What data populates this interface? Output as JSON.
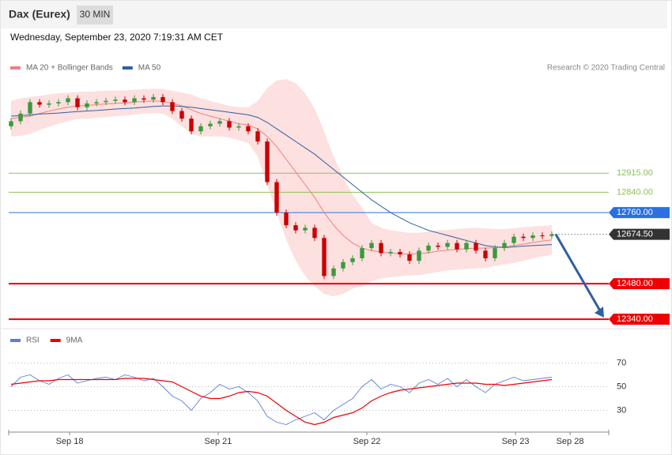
{
  "header": {
    "title": "Dax (Eurex)",
    "interval": "30 MIN",
    "timestamp": "Wednesday, September 23, 2020 7:19:31 AM CET",
    "credit": "Research © 2020 Trading Central"
  },
  "chart_data": [
    {
      "type": "candlestick",
      "up_color": "#3c9a3c",
      "down_color": "#cc0000",
      "candles": [
        [
          13100,
          13132,
          13088,
          13120
        ],
        [
          13120,
          13162,
          13108,
          13150
        ],
        [
          13150,
          13207,
          13138,
          13195
        ],
        [
          13195,
          13207,
          13173,
          13185
        ],
        [
          13185,
          13202,
          13173,
          13190
        ],
        [
          13190,
          13207,
          13178,
          13195
        ],
        [
          13195,
          13222,
          13183,
          13210
        ],
        [
          13210,
          13222,
          13163,
          13175
        ],
        [
          13175,
          13202,
          13163,
          13190
        ],
        [
          13190,
          13207,
          13178,
          13195
        ],
        [
          13195,
          13212,
          13183,
          13200
        ],
        [
          13200,
          13217,
          13188,
          13205
        ],
        [
          13205,
          13217,
          13183,
          13195
        ],
        [
          13195,
          13222,
          13183,
          13210
        ],
        [
          13210,
          13222,
          13193,
          13205
        ],
        [
          13205,
          13227,
          13193,
          13215
        ],
        [
          13215,
          13227,
          13183,
          13195
        ],
        [
          13195,
          13207,
          13148,
          13160
        ],
        [
          13160,
          13172,
          13118,
          13130
        ],
        [
          13130,
          13142,
          13068,
          13080
        ],
        [
          13080,
          13112,
          13068,
          13100
        ],
        [
          13100,
          13122,
          13088,
          13110
        ],
        [
          13110,
          13132,
          13098,
          13120
        ],
        [
          13120,
          13132,
          13083,
          13095
        ],
        [
          13095,
          13112,
          13083,
          13100
        ],
        [
          13100,
          13112,
          13068,
          13080
        ],
        [
          13080,
          13092,
          13028,
          13040
        ],
        [
          13040,
          13052,
          12868,
          12880
        ],
        [
          12880,
          12892,
          12748,
          12760
        ],
        [
          12760,
          12772,
          12698,
          12710
        ],
        [
          12710,
          12722,
          12678,
          12690
        ],
        [
          12690,
          12712,
          12678,
          12700
        ],
        [
          12700,
          12712,
          12648,
          12660
        ],
        [
          12660,
          12672,
          12498,
          12510
        ],
        [
          12510,
          12552,
          12498,
          12540
        ],
        [
          12540,
          12577,
          12528,
          12565
        ],
        [
          12565,
          12592,
          12553,
          12580
        ],
        [
          12580,
          12632,
          12568,
          12620
        ],
        [
          12620,
          12652,
          12608,
          12640
        ],
        [
          12640,
          12652,
          12588,
          12600
        ],
        [
          12600,
          12617,
          12588,
          12605
        ],
        [
          12605,
          12617,
          12583,
          12595
        ],
        [
          12595,
          12607,
          12558,
          12570
        ],
        [
          12570,
          12622,
          12558,
          12610
        ],
        [
          12610,
          12642,
          12598,
          12630
        ],
        [
          12630,
          12642,
          12613,
          12625
        ],
        [
          12625,
          12652,
          12613,
          12640
        ],
        [
          12640,
          12652,
          12603,
          12615
        ],
        [
          12615,
          12652,
          12603,
          12640
        ],
        [
          12640,
          12652,
          12598,
          12610
        ],
        [
          12610,
          12622,
          12568,
          12580
        ],
        [
          12580,
          12632,
          12568,
          12620
        ],
        [
          12620,
          12652,
          12608,
          12640
        ],
        [
          12640,
          12677,
          12628,
          12665
        ],
        [
          12665,
          12677,
          12648,
          12660
        ],
        [
          12660,
          12682,
          12648,
          12670
        ],
        [
          12670,
          12682,
          12656,
          12668
        ],
        [
          12668,
          12686.5,
          12656,
          12674.5
        ]
      ],
      "series": [
        {
          "name": "MA 20 + Bollinger Bands",
          "color": "#f08080",
          "band_color": "#fde0e0",
          "values": [
            13130,
            13135,
            13140,
            13150,
            13160,
            13168,
            13175,
            13180,
            13182,
            13185,
            13188,
            13190,
            13192,
            13195,
            13198,
            13200,
            13198,
            13190,
            13180,
            13165,
            13150,
            13140,
            13130,
            13120,
            13110,
            13105,
            13090,
            13060,
            13020,
            12970,
            12920,
            12870,
            12820,
            12760,
            12710,
            12670,
            12640,
            12620,
            12610,
            12605,
            12600,
            12598,
            12596,
            12598,
            12602,
            12608,
            12612,
            12615,
            12618,
            12620,
            12620,
            12622,
            12625,
            12630,
            12636,
            12642,
            12648,
            12652
          ],
          "upper": [
            13200,
            13210,
            13215,
            13220,
            13225,
            13230,
            13232,
            13235,
            13236,
            13238,
            13240,
            13240,
            13242,
            13244,
            13246,
            13248,
            13246,
            13240,
            13232,
            13225,
            13210,
            13200,
            13190,
            13180,
            13175,
            13175,
            13200,
            13250,
            13280,
            13286,
            13270,
            13230,
            13170,
            13080,
            12980,
            12900,
            12830,
            12780,
            12720,
            12700,
            12690,
            12685,
            12680,
            12680,
            12685,
            12690,
            12692,
            12695,
            12698,
            12700,
            12698,
            12695,
            12695,
            12698,
            12702,
            12705,
            12708,
            12710
          ],
          "lower": [
            13060,
            13062,
            13070,
            13085,
            13098,
            13110,
            13120,
            13128,
            13130,
            13133,
            13136,
            13140,
            13142,
            13146,
            13150,
            13152,
            13150,
            13130,
            13100,
            13070,
            13060,
            13060,
            13060,
            13055,
            13045,
            13035,
            12980,
            12870,
            12760,
            12654,
            12570,
            12510,
            12470,
            12440,
            12430,
            12440,
            12460,
            12470,
            12490,
            12500,
            12505,
            12510,
            12512,
            12514,
            12519,
            12526,
            12532,
            12535,
            12538,
            12540,
            12542,
            12549,
            12555,
            12562,
            12570,
            12579,
            12588,
            12594
          ]
        },
        {
          "name": "MA 50",
          "color": "#2f5f9f",
          "values": [
            13140,
            13142,
            13145,
            13148,
            13150,
            13152,
            13155,
            13158,
            13160,
            13162,
            13165,
            13168,
            13170,
            13172,
            13175,
            13178,
            13180,
            13180,
            13178,
            13175,
            13170,
            13165,
            13160,
            13155,
            13150,
            13145,
            13135,
            13115,
            13090,
            13065,
            13040,
            13015,
            12990,
            12960,
            12930,
            12900,
            12870,
            12840,
            12810,
            12785,
            12760,
            12740,
            12720,
            12705,
            12690,
            12680,
            12670,
            12660,
            12650,
            12640,
            12630,
            12625,
            12622,
            12625,
            12628,
            12630,
            12632,
            12634
          ]
        }
      ],
      "levels": [
        {
          "value": 12915,
          "label": "12915.00",
          "color": "#8fc05a",
          "style": "support"
        },
        {
          "value": 12840,
          "label": "12840.00",
          "color": "#8fc05a",
          "style": "support"
        },
        {
          "value": 12760,
          "label": "12760.00",
          "color": "#2b6fe0",
          "style": "pivot"
        },
        {
          "value": 12674.5,
          "label": "12674.50",
          "color": "#333333",
          "style": "current"
        },
        {
          "value": 12480,
          "label": "12480.00",
          "color": "#ee0000",
          "style": "target"
        },
        {
          "value": 12340,
          "label": "12340.00",
          "color": "#ee0000",
          "style": "target"
        }
      ],
      "ylim": [
        12306,
        13364
      ],
      "xlim": [
        -0.25,
        63
      ],
      "xticks": [
        {
          "value": 6.17,
          "label": "Sep 18"
        },
        {
          "value": 21.83,
          "label": "Sep 21"
        },
        {
          "value": 37.5,
          "label": "Sep 22"
        },
        {
          "value": 53.17,
          "label": "Sep 23"
        },
        {
          "value": 58.92,
          "label": "Sep 28"
        }
      ],
      "arrow_color": "#2f5f9f"
    },
    {
      "type": "line",
      "series": [
        {
          "name": "RSI",
          "color": "#5b7fd6",
          "values": [
            50,
            58,
            60,
            55,
            52,
            57,
            60,
            53,
            55,
            57,
            58,
            56,
            60,
            58,
            55,
            57,
            50,
            42,
            38,
            30,
            40,
            45,
            52,
            48,
            50,
            45,
            38,
            25,
            20,
            18,
            22,
            25,
            28,
            22,
            30,
            35,
            40,
            50,
            56,
            48,
            52,
            50,
            45,
            53,
            56,
            52,
            57,
            50,
            56,
            50,
            45,
            52,
            55,
            58,
            55,
            56,
            57,
            58
          ]
        },
        {
          "name": "9MA",
          "color": "#ee0000",
          "values": [
            52,
            53,
            54,
            55,
            55,
            56,
            56,
            56,
            56,
            56,
            56,
            56,
            57,
            57,
            57,
            56,
            55,
            54,
            50,
            46,
            42,
            40,
            40,
            42,
            45,
            46,
            45,
            42,
            36,
            30,
            25,
            20,
            18,
            20,
            24,
            26,
            28,
            32,
            38,
            42,
            45,
            47,
            48,
            49,
            50,
            51,
            52,
            53,
            53,
            53,
            52,
            52,
            51,
            52,
            53,
            54,
            55,
            56
          ]
        }
      ],
      "ylim": [
        13,
        83
      ],
      "yticks": [
        30,
        50,
        70
      ],
      "xlim": [
        -0.25,
        63
      ],
      "grid": true
    }
  ]
}
